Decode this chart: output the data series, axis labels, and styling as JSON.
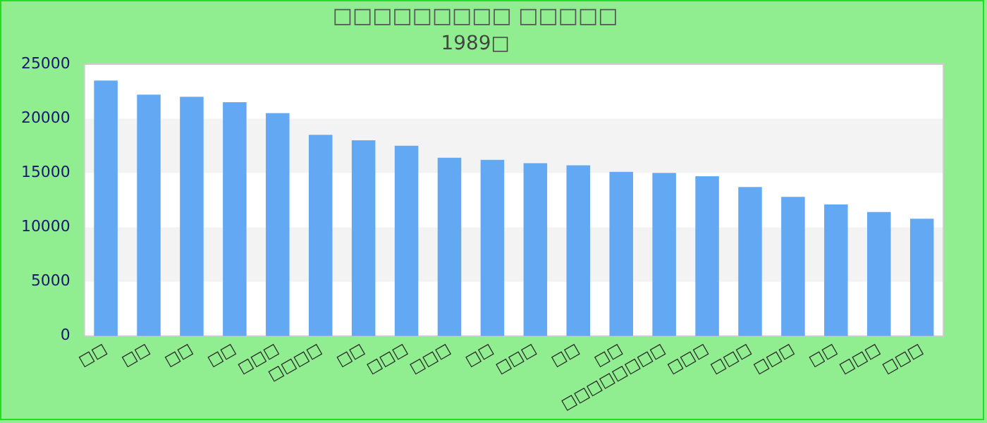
{
  "chart_data": {
    "type": "bar",
    "title": "□□□□□□□□□ □□□□□",
    "subtitle": "1989□",
    "categories": [
      "□□",
      "□□",
      "□□",
      "□□",
      "□□□",
      "□□□□",
      "□□",
      "□□□",
      "□□□",
      "□□",
      "□□□",
      "□□",
      "□□",
      "□□□□□□□□",
      "□□□",
      "□□□",
      "□□□",
      "□□",
      "□□□",
      "□□□"
    ],
    "values": [
      23500,
      22200,
      22000,
      21500,
      20500,
      18500,
      18000,
      17500,
      16400,
      16200,
      15900,
      15700,
      15100,
      15000,
      14700,
      13700,
      12800,
      12100,
      11400,
      10800
    ],
    "color": "#62a8f3",
    "ylim": [
      0,
      25000
    ],
    "yticks": [
      0,
      5000,
      10000,
      15000,
      20000,
      25000
    ],
    "grid": false,
    "legend": false,
    "bands": [
      {
        "axis": "y",
        "from": 5000,
        "to": 10000,
        "color": "#f3f3f3"
      },
      {
        "axis": "y",
        "from": 15000,
        "to": 20000,
        "color": "#f3f3f3"
      }
    ]
  }
}
